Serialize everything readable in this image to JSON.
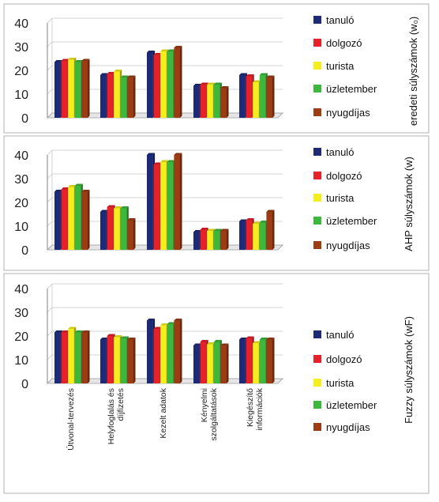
{
  "chart_data": [
    {
      "type": "bar",
      "categories": [
        "Útvonal-tervezés",
        "Helyfoglalás és díjfizetés",
        "Kezelt adatok",
        "Kényelmi szolgáltatások",
        "Kiegészítő információk"
      ],
      "series": [
        {
          "name": "tanuló",
          "values": [
            23.5,
            18,
            27.5,
            13.5,
            18
          ]
        },
        {
          "name": "dolgozó",
          "values": [
            24,
            18.5,
            26.5,
            14,
            17.5
          ]
        },
        {
          "name": "turista",
          "values": [
            24.5,
            19.5,
            28,
            14,
            15
          ]
        },
        {
          "name": "üzletember",
          "values": [
            23.5,
            17,
            28,
            14,
            18
          ]
        },
        {
          "name": "nyugdíjas",
          "values": [
            24,
            17,
            29.5,
            12.5,
            17
          ]
        }
      ],
      "ylabel": "eredeti súlyszámok (w₀)",
      "yticks": [
        0,
        10,
        20,
        30,
        40
      ],
      "ylim": [
        0,
        40
      ],
      "legend": "right",
      "grid": true
    },
    {
      "type": "bar",
      "categories": [
        "Útvonal-tervezés",
        "Helyfoglalás és díjfizetés",
        "Kezelt adatok",
        "Kényelmi szolgáltatások",
        "Kiegészítő információk"
      ],
      "series": [
        {
          "name": "tanuló",
          "values": [
            24.5,
            16,
            40,
            7.5,
            12
          ]
        },
        {
          "name": "dolgozó",
          "values": [
            25.5,
            18,
            36,
            8.5,
            12.5
          ]
        },
        {
          "name": "turista",
          "values": [
            26.5,
            17.5,
            37,
            8,
            11
          ]
        },
        {
          "name": "üzletember",
          "values": [
            27,
            17.5,
            37,
            8,
            11.5
          ]
        },
        {
          "name": "nyugdíjas",
          "values": [
            24.5,
            12.5,
            40,
            8,
            16
          ]
        }
      ],
      "ylabel": "AHP súlyszámok (w)",
      "yticks": [
        0,
        10,
        20,
        30,
        40
      ],
      "ylim": [
        0,
        40
      ],
      "legend": "right",
      "grid": true
    },
    {
      "type": "bar",
      "categories": [
        "Útvonal-tervezés",
        "Helyfoglalás és díjfizetés",
        "Kezelt adatok",
        "Kényelmi szolgáltatások",
        "Kiegészítő információk"
      ],
      "series": [
        {
          "name": "tanuló",
          "values": [
            21.5,
            18.5,
            26.5,
            16,
            18.5
          ]
        },
        {
          "name": "dolgozó",
          "values": [
            21.5,
            20,
            23,
            17.5,
            19
          ]
        },
        {
          "name": "turista",
          "values": [
            23,
            19.5,
            24.5,
            16.5,
            17
          ]
        },
        {
          "name": "üzletember",
          "values": [
            21.5,
            19,
            25,
            17.5,
            18.5
          ]
        },
        {
          "name": "nyugdíjas",
          "values": [
            21.5,
            18.5,
            26.5,
            16,
            18.5
          ]
        }
      ],
      "ylabel": "Fuzzy súlyszámok (wF)",
      "yticks": [
        0,
        10,
        20,
        30,
        40
      ],
      "ylim": [
        0,
        40
      ],
      "legend": "right",
      "grid": true
    }
  ],
  "series_colors": [
    "#1c2a78",
    "#e8202a",
    "#f4ee1c",
    "#3cb83c",
    "#9c3c14"
  ],
  "legend_marker": "square"
}
